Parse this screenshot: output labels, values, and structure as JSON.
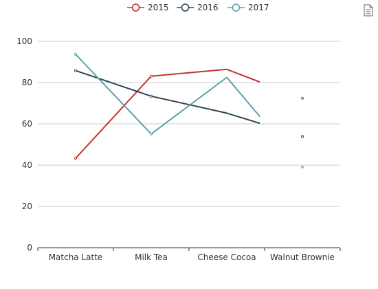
{
  "chart_data": {
    "type": "line",
    "title": "",
    "xlabel": "",
    "ylabel": "",
    "categories": [
      "Matcha Latte",
      "Milk Tea",
      "Cheese Cocoa",
      "Walnut Brownie"
    ],
    "ylim": [
      0,
      100
    ],
    "yticks": [
      0,
      20,
      40,
      60,
      80,
      100
    ],
    "grid": true,
    "legend_position": "top-center",
    "series": [
      {
        "name": "2015",
        "color": "#c23531",
        "values": [
          43.3,
          83.1,
          86.4,
          72.4
        ]
      },
      {
        "name": "2016",
        "color": "#2f4554",
        "values": [
          85.8,
          73.4,
          65.2,
          53.9
        ]
      },
      {
        "name": "2017",
        "color": "#61a0a8",
        "values": [
          93.7,
          55.1,
          82.5,
          39.1
        ]
      }
    ]
  },
  "toolbox": {
    "icon": "data-view-icon"
  }
}
